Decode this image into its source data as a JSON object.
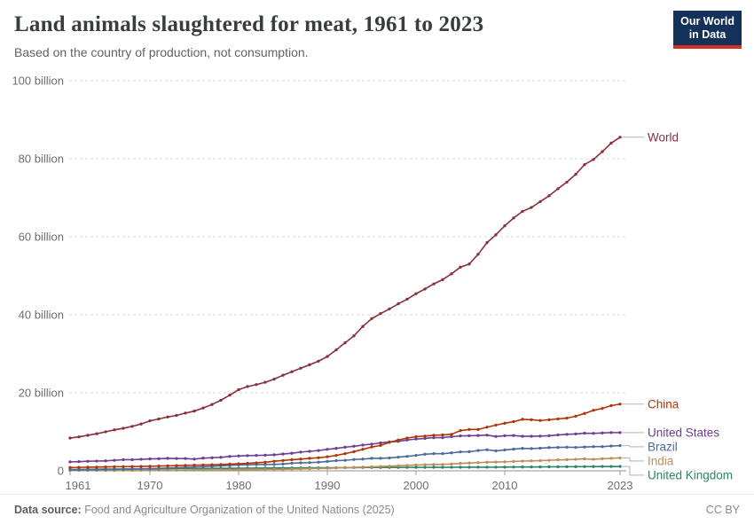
{
  "header": {
    "title": "Land animals slaughtered for meat, 1961 to 2023",
    "subtitle": "Based on the country of production, not consumption.",
    "logo_line1": "Our World",
    "logo_line2": "in Data"
  },
  "footer": {
    "source_label": "Data source:",
    "source_text": " Food and Agriculture Organization of the United Nations (2025)",
    "license": "CC BY"
  },
  "colors": {
    "grid": "#d8d8d8",
    "axis": "#8f8f8f",
    "tick": "#9c9c9c",
    "tick_label": "#6e6e6e",
    "connector": "#b2b2b2",
    "logo_bg": "#14315A",
    "logo_bar": "#D92D27"
  },
  "chart_data": {
    "type": "line",
    "title": "Land animals slaughtered for meat, 1961 to 2023",
    "subtitle": "Based on the country of production, not consumption.",
    "unit": "billion animals",
    "grid": "horizontal dashed",
    "legend_position": "right of line ends",
    "ylim": [
      0,
      100
    ],
    "yticks": [
      {
        "value": 0,
        "label": "0"
      },
      {
        "value": 20,
        "label": "20 billion"
      },
      {
        "value": 40,
        "label": "40 billion"
      },
      {
        "value": 60,
        "label": "60 billion"
      },
      {
        "value": 80,
        "label": "80 billion"
      },
      {
        "value": 100,
        "label": "100 billion"
      }
    ],
    "xticks": [
      1961,
      1970,
      1980,
      1990,
      2000,
      2010,
      2023
    ],
    "years": [
      1961,
      1962,
      1963,
      1964,
      1965,
      1966,
      1967,
      1968,
      1969,
      1970,
      1971,
      1972,
      1973,
      1974,
      1975,
      1976,
      1977,
      1978,
      1979,
      1980,
      1981,
      1982,
      1983,
      1984,
      1985,
      1986,
      1987,
      1988,
      1989,
      1990,
      1991,
      1992,
      1993,
      1994,
      1995,
      1996,
      1997,
      1998,
      1999,
      2000,
      2001,
      2002,
      2003,
      2004,
      2005,
      2006,
      2007,
      2008,
      2009,
      2010,
      2011,
      2012,
      2013,
      2014,
      2015,
      2016,
      2017,
      2018,
      2019,
      2020,
      2021,
      2022,
      2023
    ],
    "series": [
      {
        "name": "World",
        "color": "#883039",
        "values": [
          8.4,
          8.7,
          9.1,
          9.5,
          10.0,
          10.5,
          10.9,
          11.4,
          12.0,
          12.8,
          13.3,
          13.8,
          14.2,
          14.8,
          15.3,
          16.1,
          17.0,
          18.1,
          19.4,
          20.8,
          21.6,
          22.1,
          22.7,
          23.5,
          24.5,
          25.4,
          26.3,
          27.2,
          28.1,
          29.3,
          31.0,
          32.8,
          34.6,
          37.0,
          39.0,
          40.3,
          41.5,
          42.8,
          44.0,
          45.4,
          46.6,
          47.9,
          49.0,
          50.5,
          52.2,
          53.0,
          55.5,
          58.5,
          60.5,
          62.8,
          64.8,
          66.5,
          67.5,
          69.0,
          70.5,
          72.3,
          74.0,
          76.0,
          78.5,
          79.8,
          81.8,
          84.0,
          85.5
        ]
      },
      {
        "name": "China",
        "color": "#B13507",
        "values": [
          0.85,
          0.88,
          0.92,
          0.96,
          1.0,
          1.05,
          1.08,
          1.1,
          1.13,
          1.17,
          1.22,
          1.27,
          1.32,
          1.38,
          1.45,
          1.5,
          1.55,
          1.62,
          1.72,
          1.82,
          1.92,
          2.05,
          2.2,
          2.45,
          2.65,
          2.85,
          3.0,
          3.2,
          3.35,
          3.6,
          3.95,
          4.4,
          4.9,
          5.5,
          6.1,
          6.5,
          7.3,
          7.9,
          8.4,
          8.75,
          8.9,
          9.1,
          9.2,
          9.35,
          10.3,
          10.6,
          10.6,
          11.2,
          11.7,
          12.2,
          12.6,
          13.2,
          13.1,
          12.9,
          13.1,
          13.3,
          13.5,
          14.0,
          14.7,
          15.5,
          16.0,
          16.7,
          17.1
        ]
      },
      {
        "name": "United States",
        "color": "#6D3E91",
        "values": [
          2.3,
          2.35,
          2.45,
          2.5,
          2.55,
          2.7,
          2.85,
          2.85,
          2.95,
          3.05,
          3.1,
          3.2,
          3.15,
          3.15,
          3.0,
          3.25,
          3.35,
          3.45,
          3.7,
          3.8,
          3.9,
          3.95,
          4.0,
          4.1,
          4.3,
          4.5,
          4.8,
          5.0,
          5.2,
          5.5,
          5.75,
          6.05,
          6.3,
          6.6,
          6.85,
          7.15,
          7.4,
          7.55,
          7.9,
          8.15,
          8.3,
          8.5,
          8.5,
          8.75,
          8.95,
          9.0,
          9.05,
          9.15,
          8.8,
          9.0,
          9.05,
          8.85,
          8.85,
          8.9,
          9.0,
          9.2,
          9.35,
          9.45,
          9.65,
          9.6,
          9.7,
          9.8,
          9.8
        ]
      },
      {
        "name": "Brazil",
        "color": "#4C6A9C",
        "values": [
          0.25,
          0.27,
          0.29,
          0.31,
          0.34,
          0.37,
          0.41,
          0.45,
          0.5,
          0.55,
          0.62,
          0.7,
          0.78,
          0.88,
          0.98,
          1.05,
          1.15,
          1.3,
          1.4,
          1.5,
          1.55,
          1.6,
          1.6,
          1.65,
          1.75,
          1.95,
          2.05,
          2.1,
          2.2,
          2.4,
          2.6,
          2.7,
          2.9,
          3.0,
          3.2,
          3.2,
          3.3,
          3.5,
          3.7,
          3.95,
          4.25,
          4.4,
          4.4,
          4.6,
          4.85,
          4.9,
          5.2,
          5.4,
          5.1,
          5.35,
          5.55,
          5.75,
          5.7,
          5.8,
          5.95,
          6.0,
          6.05,
          6.0,
          6.1,
          6.2,
          6.2,
          6.35,
          6.45
        ]
      },
      {
        "name": "India",
        "color": "#BC8E5A",
        "values": [
          0.1,
          0.1,
          0.11,
          0.11,
          0.12,
          0.12,
          0.13,
          0.13,
          0.14,
          0.15,
          0.16,
          0.17,
          0.18,
          0.19,
          0.2,
          0.21,
          0.22,
          0.24,
          0.26,
          0.28,
          0.3,
          0.32,
          0.35,
          0.38,
          0.41,
          0.45,
          0.5,
          0.55,
          0.6,
          0.65,
          0.72,
          0.8,
          0.88,
          0.95,
          1.05,
          1.1,
          1.2,
          1.3,
          1.4,
          1.5,
          1.55,
          1.6,
          1.65,
          1.75,
          1.9,
          2.0,
          2.1,
          2.2,
          2.25,
          2.3,
          2.4,
          2.5,
          2.55,
          2.6,
          2.7,
          2.8,
          2.85,
          2.95,
          3.05,
          2.95,
          3.1,
          3.2,
          3.3
        ]
      },
      {
        "name": "United Kingdom",
        "color": "#2C8465",
        "values": [
          0.35,
          0.37,
          0.4,
          0.42,
          0.43,
          0.44,
          0.47,
          0.48,
          0.5,
          0.52,
          0.55,
          0.57,
          0.6,
          0.6,
          0.57,
          0.59,
          0.61,
          0.63,
          0.65,
          0.67,
          0.68,
          0.69,
          0.7,
          0.72,
          0.73,
          0.74,
          0.76,
          0.78,
          0.77,
          0.78,
          0.79,
          0.81,
          0.82,
          0.84,
          0.85,
          0.86,
          0.87,
          0.87,
          0.88,
          0.89,
          0.88,
          0.9,
          0.9,
          0.91,
          0.92,
          0.92,
          0.93,
          0.93,
          0.94,
          0.95,
          0.97,
          0.98,
          0.99,
          1.0,
          1.02,
          1.03,
          1.05,
          1.06,
          1.08,
          1.09,
          1.1,
          1.1,
          1.12
        ]
      }
    ]
  }
}
